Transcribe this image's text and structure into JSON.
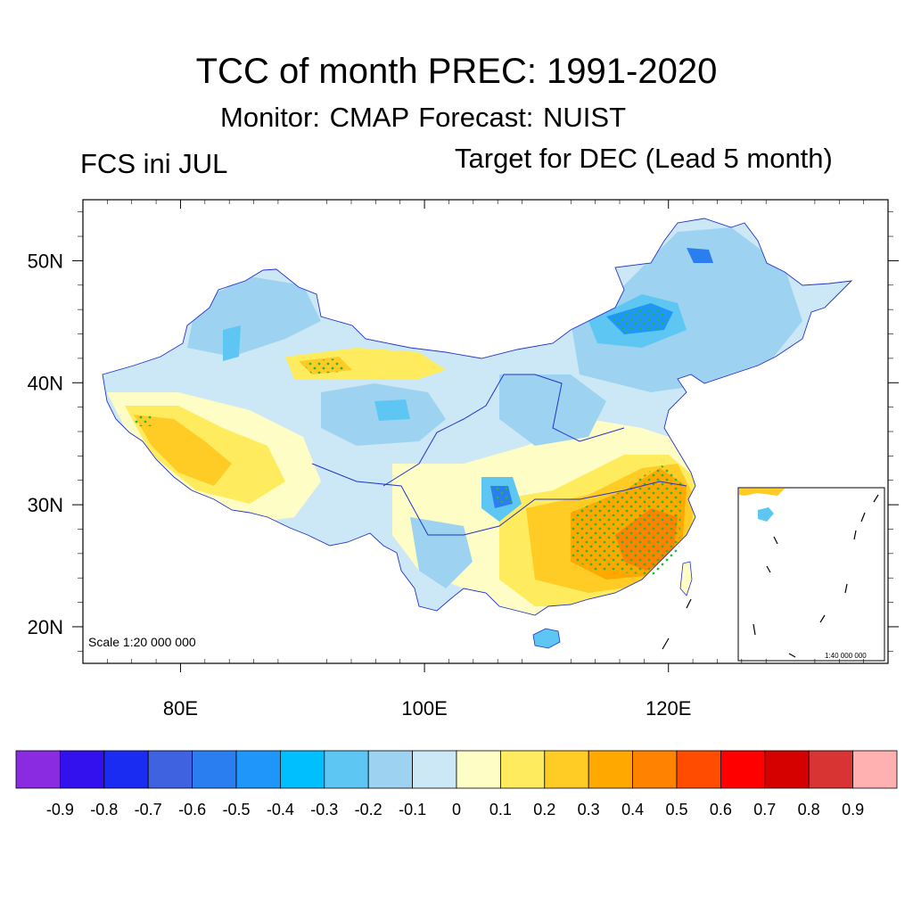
{
  "title": "TCC of month PREC: 1991-2020",
  "subtitle": "Monitor: CMAP   Forecast: NUIST",
  "left_label": "FCS ini JUL",
  "right_label": "Target for DEC (Lead 5 month)",
  "map": {
    "lon_range": [
      72,
      138
    ],
    "lat_range": [
      17,
      55
    ],
    "x_ticks": [
      {
        "value": 80,
        "label": "80E"
      },
      {
        "value": 100,
        "label": "100E"
      },
      {
        "value": 120,
        "label": "120E"
      }
    ],
    "y_ticks": [
      {
        "value": 20,
        "label": "20N"
      },
      {
        "value": 30,
        "label": "30N"
      },
      {
        "value": 40,
        "label": "40N"
      },
      {
        "value": 50,
        "label": "50N"
      }
    ],
    "scale_text": "Scale 1:20 000 000",
    "inset_scale_text": "1:40 000 000",
    "stipple_color": "#22bb33",
    "river_color": "#2233cc",
    "border_color": "#555555"
  },
  "colorbar": {
    "colors": [
      "#8a2be2",
      "#3311ee",
      "#1a2cf2",
      "#3f62e0",
      "#2a7ef0",
      "#1e96fa",
      "#00bfff",
      "#5ec6f2",
      "#9dd3f0",
      "#cce8f6",
      "#fffdc6",
      "#ffeb5e",
      "#ffcc26",
      "#ffa800",
      "#ff8200",
      "#ff4c00",
      "#ff0000",
      "#d50000",
      "#d93434",
      "#ffb0b0"
    ],
    "labels": [
      "-0.9",
      "-0.8",
      "-0.7",
      "-0.6",
      "-0.5",
      "-0.4",
      "-0.3",
      "-0.2",
      "-0.1",
      "0",
      "0.1",
      "0.2",
      "0.3",
      "0.4",
      "0.5",
      "0.6",
      "0.7",
      "0.8",
      "0.9"
    ]
  }
}
